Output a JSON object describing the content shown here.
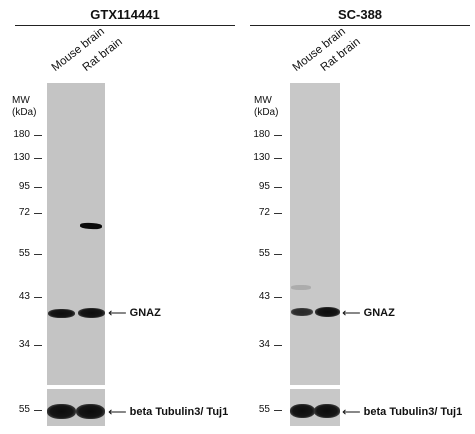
{
  "panels": [
    {
      "title": "GTX114441",
      "lanes": [
        "Mouse brain",
        "Rat brain"
      ],
      "mw_header": [
        "MW",
        "(kDa)"
      ],
      "mw_markers": [
        "180",
        "130",
        "95",
        "72",
        "55",
        "43",
        "34"
      ],
      "loading_marker": "55"
    },
    {
      "title": "SC-388",
      "lanes": [
        "Mouse brain",
        "Rat brain"
      ],
      "mw_header": [
        "MW",
        "(kDa)"
      ],
      "mw_markers": [
        "180",
        "130",
        "95",
        "72",
        "55",
        "43",
        "34"
      ],
      "loading_marker": "55"
    }
  ],
  "labels": {
    "target": "GNAZ",
    "loading_control": "beta Tubulin3/ Tuj1"
  }
}
